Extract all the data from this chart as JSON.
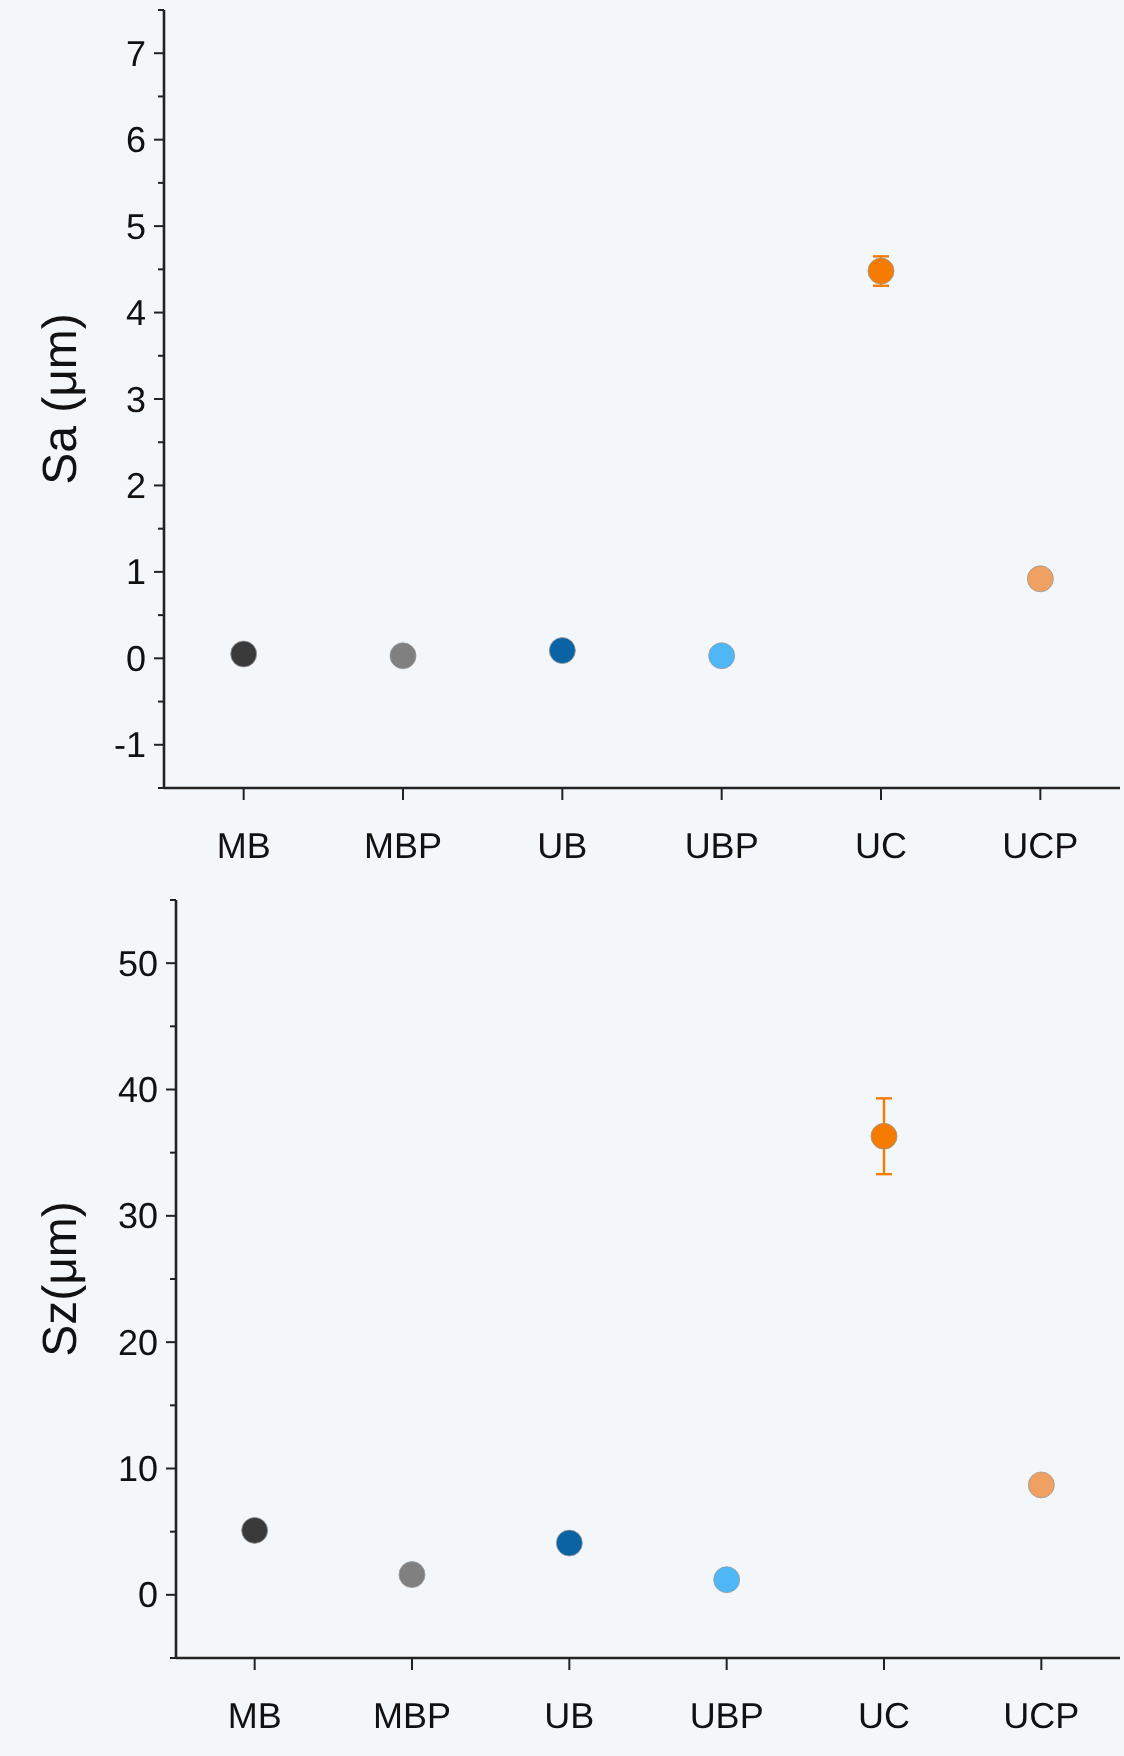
{
  "chart_data": [
    {
      "type": "scatter",
      "ylabel": "Sa (μm)",
      "categories": [
        "MB",
        "MBP",
        "UB",
        "UBP",
        "UC",
        "UCP"
      ],
      "values": [
        0.05,
        0.03,
        0.09,
        0.03,
        4.48,
        0.92
      ],
      "errors": [
        null,
        null,
        null,
        null,
        0.17,
        0.08
      ],
      "colors": [
        "#3a3a3a",
        "#808080",
        "#0a64a4",
        "#4fb7f5",
        "#f57c00",
        "#f0a060"
      ],
      "ylim": [
        -1.5,
        7.5
      ],
      "yticks": [
        -1,
        0,
        1,
        2,
        3,
        4,
        5,
        6,
        7
      ],
      "marker": "circle",
      "grid": false
    },
    {
      "type": "scatter",
      "ylabel": "Sz(μm)",
      "categories": [
        "MB",
        "MBP",
        "UB",
        "UBP",
        "UC",
        "UCP"
      ],
      "values": [
        5.1,
        1.6,
        4.1,
        1.2,
        36.3,
        8.7
      ],
      "errors": [
        null,
        null,
        null,
        null,
        3,
        null
      ],
      "colors": [
        "#3a3a3a",
        "#808080",
        "#0a64a4",
        "#4fb7f5",
        "#f57c00",
        "#f0a060"
      ],
      "ylim": [
        -5,
        55
      ],
      "yticks": [
        0,
        10,
        20,
        30,
        40,
        50
      ],
      "marker": "circle",
      "grid": false
    }
  ]
}
